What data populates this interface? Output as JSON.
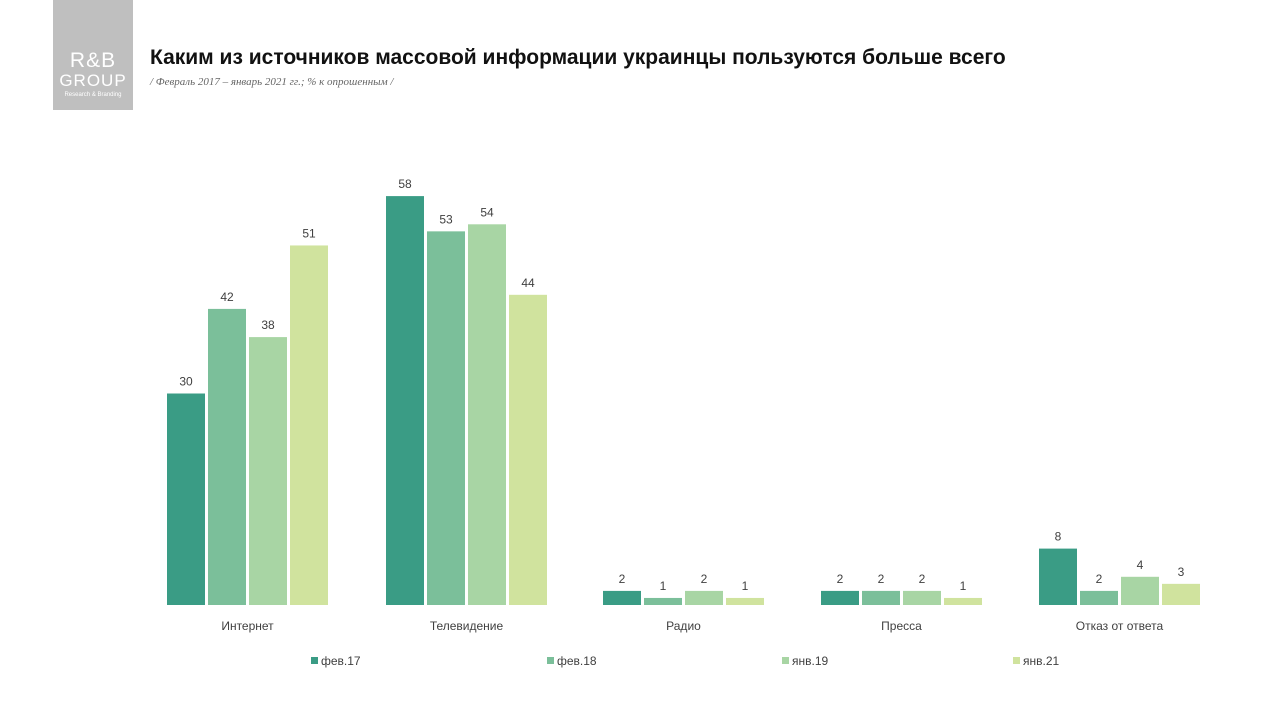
{
  "logo": {
    "line1": "R&B",
    "line2": "GROUP",
    "line3": "Research & Branding"
  },
  "title": "Каким из источников массовой информации украинцы пользуются больше всего",
  "subtitle": "/ Февраль 2017 – январь 2021 гг.; % к опрошенным /",
  "chart_data": {
    "type": "bar",
    "title": "Каким из источников массовой информации украинцы пользуются больше всего",
    "subtitle": "/ Февраль 2017 – январь 2021 гг.; % к опрошенным /",
    "categories": [
      "Интернет",
      "Телевидение",
      "Радио",
      "Пресса",
      "Отказ  от ответа"
    ],
    "series": [
      {
        "name": "фев.17",
        "values": [
          30,
          58,
          2,
          2,
          8
        ],
        "color": "#3a9c85"
      },
      {
        "name": "фев.18",
        "values": [
          42,
          53,
          1,
          2,
          2
        ],
        "color": "#7bbf9a"
      },
      {
        "name": "янв.19",
        "values": [
          38,
          54,
          2,
          2,
          4
        ],
        "color": "#a8d5a4"
      },
      {
        "name": "янв.21",
        "values": [
          51,
          44,
          1,
          1,
          3
        ],
        "color": "#d0e39e"
      }
    ],
    "ylim": [
      0,
      60
    ],
    "grid": false,
    "legend_position": "bottom",
    "data_labels": true
  }
}
